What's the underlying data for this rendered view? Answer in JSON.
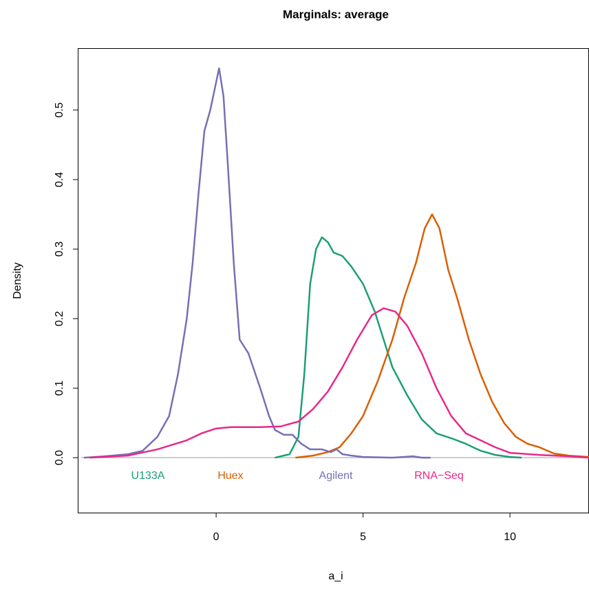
{
  "chart_data": {
    "type": "line",
    "title": "Marginals: average",
    "x_label": "a_i",
    "y_label": "Density",
    "xlim": [
      -4.71,
      12.69
    ],
    "ylim": [
      -0.079,
      0.589
    ],
    "xticks": [
      0,
      5,
      10
    ],
    "yticks": [
      {
        "value": 0,
        "label": "0.0"
      },
      0.1,
      0.2,
      0.3,
      0.4,
      0.5
    ],
    "series": [
      {
        "name": "U133A",
        "color": "#1B9E77",
        "x": [
          2.0,
          2.5,
          2.8,
          3.0,
          3.2,
          3.4,
          3.6,
          3.8,
          4.0,
          4.3,
          4.6,
          5.0,
          5.4,
          5.7,
          6.0,
          6.5,
          7.0,
          7.5,
          8.0,
          8.5,
          9.0,
          9.5,
          10.0,
          10.4
        ],
        "values": [
          0,
          0.005,
          0.03,
          0.12,
          0.25,
          0.3,
          0.317,
          0.31,
          0.295,
          0.29,
          0.275,
          0.25,
          0.21,
          0.17,
          0.13,
          0.09,
          0.055,
          0.035,
          0.028,
          0.02,
          0.01,
          0.004,
          0.001,
          0
        ]
      },
      {
        "name": "Huex",
        "color": "#D95F02",
        "x": [
          2.7,
          3.3,
          3.8,
          4.2,
          4.6,
          5.0,
          5.5,
          6.0,
          6.4,
          6.8,
          7.1,
          7.35,
          7.6,
          7.9,
          8.2,
          8.6,
          9.0,
          9.4,
          9.8,
          10.2,
          10.6,
          11.0,
          11.5,
          12.0,
          12.69
        ],
        "values": [
          0,
          0.003,
          0.008,
          0.015,
          0.035,
          0.06,
          0.11,
          0.17,
          0.23,
          0.28,
          0.33,
          0.35,
          0.33,
          0.27,
          0.23,
          0.17,
          0.12,
          0.08,
          0.05,
          0.03,
          0.02,
          0.015,
          0.006,
          0.003,
          0.001
        ]
      },
      {
        "name": "Agilent",
        "color": "#7570B3",
        "x": [
          -4.5,
          -3.8,
          -3.0,
          -2.5,
          -2.0,
          -1.6,
          -1.3,
          -1.0,
          -0.8,
          -0.6,
          -0.4,
          -0.2,
          0.0,
          0.1,
          0.25,
          0.4,
          0.6,
          0.8,
          1.1,
          1.5,
          1.8,
          2.0,
          2.3,
          2.6,
          2.9,
          3.2,
          3.6,
          3.9,
          4.1,
          4.3,
          4.6,
          5.0,
          6.0,
          6.7,
          7.0,
          7.3
        ],
        "values": [
          0,
          0.002,
          0.005,
          0.01,
          0.03,
          0.06,
          0.12,
          0.2,
          0.28,
          0.38,
          0.47,
          0.5,
          0.54,
          0.56,
          0.52,
          0.42,
          0.28,
          0.17,
          0.15,
          0.1,
          0.06,
          0.04,
          0.033,
          0.033,
          0.02,
          0.012,
          0.012,
          0.008,
          0.012,
          0.005,
          0.003,
          0.001,
          0,
          0.002,
          0,
          0
        ]
      },
      {
        "name": "RNA−Seq",
        "color": "#E7298A",
        "x": [
          -4.3,
          -3.0,
          -2.0,
          -1.0,
          -0.5,
          0.0,
          0.5,
          1.5,
          2.2,
          2.8,
          3.3,
          3.8,
          4.3,
          4.8,
          5.3,
          5.7,
          6.1,
          6.5,
          7.0,
          7.5,
          8.0,
          8.5,
          9.0,
          9.5,
          10.0,
          11.0,
          12.0,
          12.69
        ],
        "values": [
          0,
          0.003,
          0.012,
          0.025,
          0.035,
          0.042,
          0.044,
          0.044,
          0.045,
          0.052,
          0.07,
          0.095,
          0.13,
          0.17,
          0.205,
          0.215,
          0.21,
          0.19,
          0.15,
          0.1,
          0.06,
          0.035,
          0.025,
          0.015,
          0.007,
          0.004,
          0.002,
          0
        ]
      }
    ]
  }
}
